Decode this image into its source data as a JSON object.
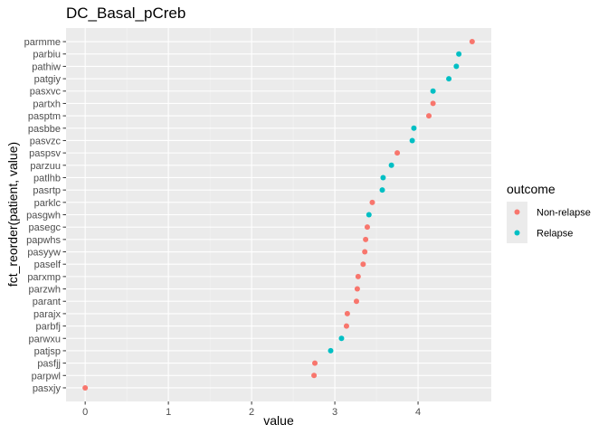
{
  "chart_data": {
    "type": "scatter",
    "title": "DC_Basal_pCreb",
    "xlabel": "value",
    "ylabel": "fct_reorder(patient, value)",
    "xlim": [
      -0.23,
      4.88
    ],
    "x_ticks": [
      0,
      1,
      2,
      3,
      4
    ],
    "x_tick_labels": [
      "0",
      "1",
      "2",
      "3",
      "4"
    ],
    "grid": true,
    "legend": {
      "title": "outcome",
      "position": "right",
      "entries": [
        {
          "label": "Non-relapse",
          "color": "#F8766D"
        },
        {
          "label": "Relapse",
          "color": "#00BFC4"
        }
      ]
    },
    "categories": [
      "parmme",
      "parbiu",
      "pathiw",
      "patgiy",
      "pasxvc",
      "partxh",
      "pasptm",
      "pasbbe",
      "pasvzc",
      "paspsv",
      "parzuu",
      "patlhb",
      "pasrtp",
      "parklc",
      "pasgwh",
      "pasegc",
      "papwhs",
      "pasyyw",
      "paself",
      "parxmp",
      "parzwh",
      "parant",
      "parajx",
      "parbfj",
      "parwxu",
      "patjsp",
      "pasfjj",
      "parpwl",
      "pasxjy"
    ],
    "points": [
      {
        "patient": "parmme",
        "value": 4.65,
        "outcome": "Non-relapse"
      },
      {
        "patient": "parbiu",
        "value": 4.49,
        "outcome": "Relapse"
      },
      {
        "patient": "pathiw",
        "value": 4.46,
        "outcome": "Relapse"
      },
      {
        "patient": "patgiy",
        "value": 4.37,
        "outcome": "Relapse"
      },
      {
        "patient": "pasxvc",
        "value": 4.18,
        "outcome": "Relapse"
      },
      {
        "patient": "partxh",
        "value": 4.18,
        "outcome": "Non-relapse"
      },
      {
        "patient": "pasptm",
        "value": 4.13,
        "outcome": "Non-relapse"
      },
      {
        "patient": "pasbbe",
        "value": 3.95,
        "outcome": "Relapse"
      },
      {
        "patient": "pasvzc",
        "value": 3.93,
        "outcome": "Relapse"
      },
      {
        "patient": "paspsv",
        "value": 3.75,
        "outcome": "Non-relapse"
      },
      {
        "patient": "parzuu",
        "value": 3.68,
        "outcome": "Relapse"
      },
      {
        "patient": "patlhb",
        "value": 3.58,
        "outcome": "Relapse"
      },
      {
        "patient": "pasrtp",
        "value": 3.57,
        "outcome": "Relapse"
      },
      {
        "patient": "parklc",
        "value": 3.45,
        "outcome": "Non-relapse"
      },
      {
        "patient": "pasgwh",
        "value": 3.41,
        "outcome": "Relapse"
      },
      {
        "patient": "pasegc",
        "value": 3.39,
        "outcome": "Non-relapse"
      },
      {
        "patient": "papwhs",
        "value": 3.37,
        "outcome": "Non-relapse"
      },
      {
        "patient": "pasyyw",
        "value": 3.36,
        "outcome": "Non-relapse"
      },
      {
        "patient": "paself",
        "value": 3.34,
        "outcome": "Non-relapse"
      },
      {
        "patient": "parxmp",
        "value": 3.28,
        "outcome": "Non-relapse"
      },
      {
        "patient": "parzwh",
        "value": 3.27,
        "outcome": "Non-relapse"
      },
      {
        "patient": "parant",
        "value": 3.26,
        "outcome": "Non-relapse"
      },
      {
        "patient": "parajx",
        "value": 3.15,
        "outcome": "Non-relapse"
      },
      {
        "patient": "parbfj",
        "value": 3.14,
        "outcome": "Non-relapse"
      },
      {
        "patient": "parwxu",
        "value": 3.08,
        "outcome": "Relapse"
      },
      {
        "patient": "patjsp",
        "value": 2.95,
        "outcome": "Relapse"
      },
      {
        "patient": "pasfjj",
        "value": 2.76,
        "outcome": "Non-relapse"
      },
      {
        "patient": "parpwl",
        "value": 2.75,
        "outcome": "Non-relapse"
      },
      {
        "patient": "pasxjy",
        "value": 0.0,
        "outcome": "Non-relapse"
      }
    ]
  }
}
